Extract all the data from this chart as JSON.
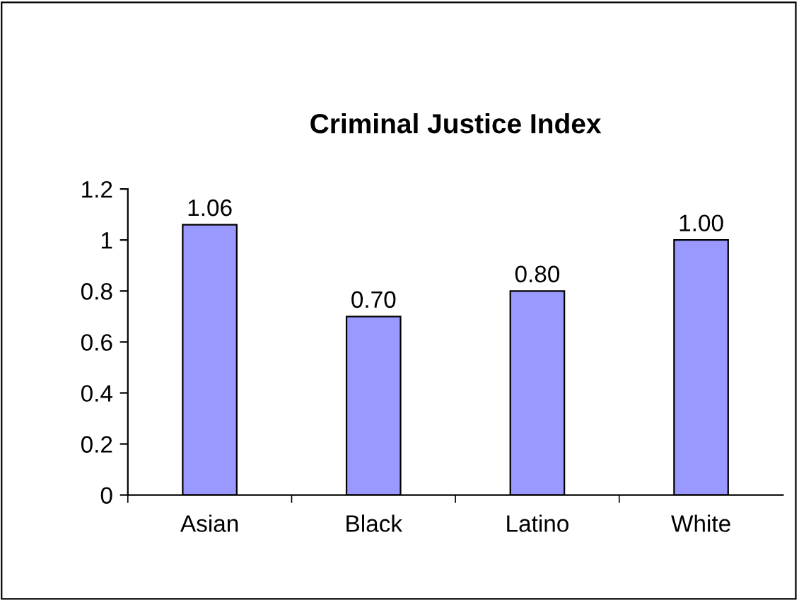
{
  "chart_data": {
    "type": "bar",
    "title": "Criminal Justice Index",
    "categories": [
      "Asian",
      "Black",
      "Latino",
      "White"
    ],
    "values": [
      1.06,
      0.7,
      0.8,
      1.0
    ],
    "value_labels": [
      "1.06",
      "0.70",
      "0.80",
      "1.00"
    ],
    "color": "#9999ff",
    "ylim": [
      0,
      1.2
    ],
    "yticks": [
      0,
      0.2,
      0.4,
      0.6,
      0.8,
      1,
      1.2
    ],
    "grid": false,
    "legend": false
  }
}
